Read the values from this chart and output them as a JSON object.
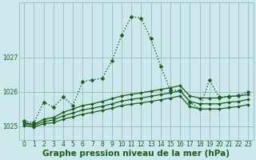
{
  "title": "Graphe pression niveau de la mer (hPa)",
  "background_color": "#cce8ed",
  "grid_color": "#99bbbb",
  "line_color": "#1a5c1a",
  "ylim": [
    1024.6,
    1028.6
  ],
  "xlim": [
    -0.5,
    23.5
  ],
  "yticks": [
    1025,
    1026,
    1027
  ],
  "xticks": [
    0,
    1,
    2,
    3,
    4,
    5,
    6,
    7,
    8,
    9,
    10,
    11,
    12,
    13,
    14,
    15,
    16,
    17,
    18,
    19,
    20,
    21,
    22,
    23
  ],
  "series": [
    {
      "y": [
        1025.15,
        1025.1,
        1025.7,
        1025.55,
        1025.85,
        1025.6,
        1026.3,
        1026.35,
        1026.4,
        1026.9,
        1027.65,
        1028.2,
        1028.15,
        1027.55,
        1026.75,
        1026.05,
        1026.05,
        1025.7,
        1025.5,
        1026.35,
        1025.85,
        1025.85,
        1025.9,
        1026.0
      ],
      "linestyle": "dotted",
      "linewidth": 1.0,
      "markersize": 2.5,
      "zorder": 5
    },
    {
      "y": [
        1025.1,
        1025.05,
        1025.2,
        1025.25,
        1025.4,
        1025.5,
        1025.6,
        1025.65,
        1025.72,
        1025.8,
        1025.88,
        1025.93,
        1025.97,
        1026.02,
        1026.07,
        1026.12,
        1026.18,
        1025.88,
        1025.82,
        1025.82,
        1025.82,
        1025.87,
        1025.88,
        1025.92
      ],
      "linestyle": "solid",
      "linewidth": 0.9,
      "markersize": 2.0,
      "zorder": 4
    },
    {
      "y": [
        1025.07,
        1025.02,
        1025.13,
        1025.18,
        1025.3,
        1025.38,
        1025.47,
        1025.52,
        1025.58,
        1025.65,
        1025.73,
        1025.78,
        1025.82,
        1025.87,
        1025.92,
        1025.97,
        1026.03,
        1025.72,
        1025.65,
        1025.65,
        1025.65,
        1025.7,
        1025.72,
        1025.78
      ],
      "linestyle": "solid",
      "linewidth": 0.9,
      "markersize": 2.0,
      "zorder": 3
    },
    {
      "y": [
        1025.02,
        1024.97,
        1025.07,
        1025.1,
        1025.2,
        1025.27,
        1025.35,
        1025.4,
        1025.46,
        1025.52,
        1025.6,
        1025.64,
        1025.68,
        1025.72,
        1025.77,
        1025.82,
        1025.88,
        1025.57,
        1025.5,
        1025.5,
        1025.5,
        1025.54,
        1025.57,
        1025.63
      ],
      "linestyle": "solid",
      "linewidth": 0.9,
      "markersize": 2.0,
      "zorder": 2
    }
  ],
  "title_fontsize": 7.5,
  "tick_fontsize": 5.5
}
